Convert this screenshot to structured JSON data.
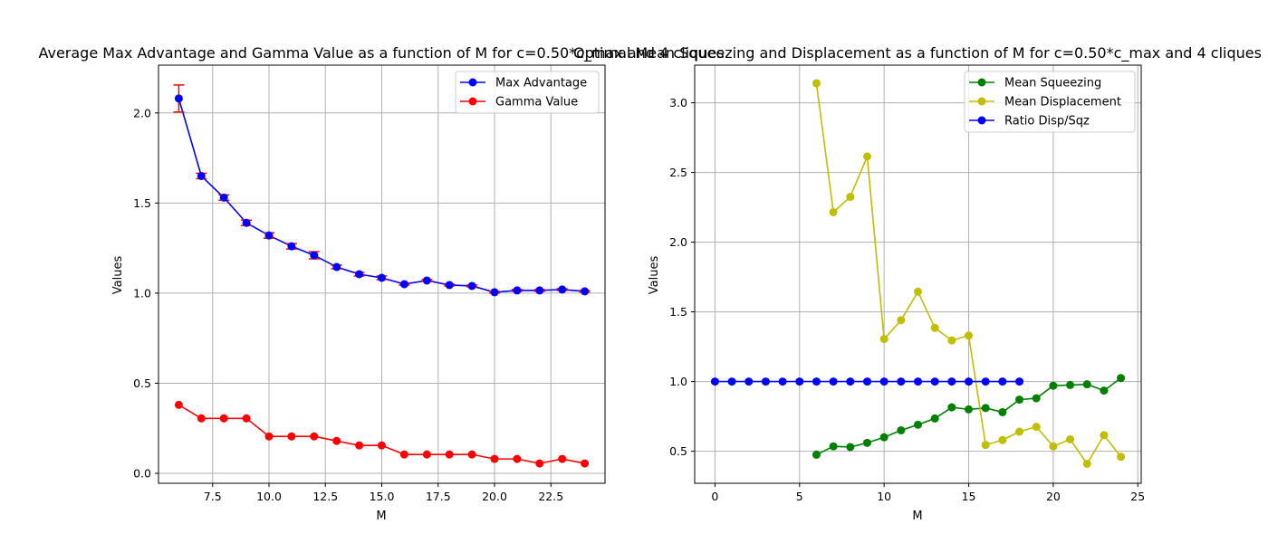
{
  "chart_data": [
    {
      "type": "line",
      "title": "Average Max Advantage and Gamma Value as a function of M for c=0.50*c_max and 4 cliques",
      "xlabel": "M",
      "ylabel": "Values",
      "xlim": [
        5.1,
        24.9
      ],
      "ylim": [
        -0.055,
        2.265
      ],
      "xticks": [
        7.5,
        10.0,
        12.5,
        15.0,
        17.5,
        20.0,
        22.5
      ],
      "xtick_labels": [
        "7.5",
        "10.0",
        "12.5",
        "15.0",
        "17.5",
        "20.0",
        "22.5"
      ],
      "yticks": [
        0.0,
        0.5,
        1.0,
        1.5,
        2.0
      ],
      "ytick_labels": [
        "0.0",
        "0.5",
        "1.0",
        "1.5",
        "2.0"
      ],
      "grid": true,
      "legend_position": "top-right",
      "series": [
        {
          "name": "Max Advantage",
          "color": "#0000ff",
          "error_color": "#ff0000",
          "x": [
            6,
            7,
            8,
            9,
            10,
            11,
            12,
            13,
            14,
            15,
            16,
            17,
            18,
            19,
            20,
            21,
            22,
            23,
            24
          ],
          "values": [
            2.08,
            1.65,
            1.53,
            1.39,
            1.32,
            1.26,
            1.21,
            1.145,
            1.105,
            1.085,
            1.05,
            1.07,
            1.045,
            1.04,
            1.005,
            1.015,
            1.015,
            1.02,
            1.01
          ],
          "errors": [
            0.075,
            0.015,
            0.015,
            0.015,
            0.015,
            0.015,
            0.02,
            0.01,
            0.01,
            0.01,
            0.005,
            0.005,
            0.005,
            0.005,
            0.005,
            0.005,
            0.005,
            0.005,
            0.005
          ]
        },
        {
          "name": "Gamma Value",
          "color": "#ff0000",
          "x": [
            6,
            7,
            8,
            9,
            10,
            11,
            12,
            13,
            14,
            15,
            16,
            17,
            18,
            19,
            20,
            21,
            22,
            23,
            24
          ],
          "values": [
            0.38,
            0.305,
            0.305,
            0.305,
            0.205,
            0.205,
            0.205,
            0.18,
            0.155,
            0.155,
            0.105,
            0.105,
            0.105,
            0.105,
            0.08,
            0.08,
            0.055,
            0.08,
            0.055
          ]
        }
      ]
    },
    {
      "type": "line",
      "title": "Optimal Mean Squeezing and Displacement as a function of M for c=0.50*c_max and 4 cliques",
      "xlabel": "M",
      "ylabel": "Values",
      "xlim": [
        -1.2,
        25.2
      ],
      "ylim": [
        0.27,
        3.27
      ],
      "xticks": [
        0,
        5,
        10,
        15,
        20,
        25
      ],
      "xtick_labels": [
        "0",
        "5",
        "10",
        "15",
        "20",
        "25"
      ],
      "yticks": [
        0.5,
        1.0,
        1.5,
        2.0,
        2.5,
        3.0
      ],
      "ytick_labels": [
        "0.5",
        "1.0",
        "1.5",
        "2.0",
        "2.5",
        "3.0"
      ],
      "grid": true,
      "legend_position": "top-right",
      "series": [
        {
          "name": "Mean Squeezing",
          "color": "#008000",
          "x": [
            6,
            7,
            8,
            9,
            10,
            11,
            12,
            13,
            14,
            15,
            16,
            17,
            18,
            19,
            20,
            21,
            22,
            23,
            24
          ],
          "values": [
            0.475,
            0.535,
            0.53,
            0.56,
            0.6,
            0.65,
            0.69,
            0.735,
            0.815,
            0.8,
            0.81,
            0.78,
            0.87,
            0.88,
            0.97,
            0.975,
            0.98,
            0.935,
            1.025
          ]
        },
        {
          "name": "Mean Displacement",
          "color": "#bfbf00",
          "x": [
            6,
            7,
            8,
            9,
            10,
            11,
            12,
            13,
            14,
            15,
            16,
            17,
            18,
            19,
            20,
            21,
            22,
            23,
            24
          ],
          "values": [
            3.14,
            2.215,
            2.325,
            2.615,
            1.305,
            1.44,
            1.645,
            1.385,
            1.295,
            1.33,
            0.545,
            0.58,
            0.64,
            0.675,
            0.535,
            0.585,
            0.41,
            0.615,
            0.46
          ]
        },
        {
          "name": "Ratio Disp/Sqz",
          "color": "#0000ff",
          "x": [
            0,
            1,
            2,
            3,
            4,
            5,
            6,
            7,
            8,
            9,
            10,
            11,
            12,
            13,
            14,
            15,
            16,
            17,
            18
          ],
          "values": [
            1,
            1,
            1,
            1,
            1,
            1,
            1,
            1,
            1,
            1,
            1,
            1,
            1,
            1,
            1,
            1,
            1,
            1,
            1
          ]
        }
      ]
    }
  ]
}
